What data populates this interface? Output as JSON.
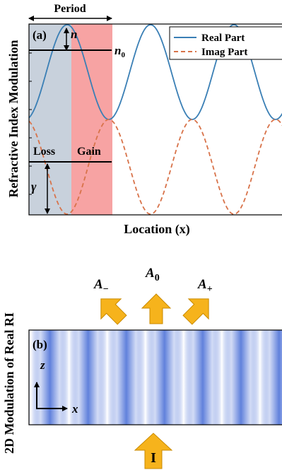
{
  "panel_a": {
    "label": "(a)",
    "period_label": "Period",
    "ylabel": "Refractive Index Modulation",
    "xlabel": "Location (x)",
    "n_label": "n",
    "n0_label": "n",
    "n0_sub": "0",
    "gamma_label": "γ",
    "loss_label": "Loss",
    "gain_label": "Gain",
    "colors": {
      "real": "#3a7fb5",
      "imag": "#d8734a",
      "loss_region": "#c8d1dc",
      "gain_region": "#f7a3a3"
    },
    "chart_data": {
      "type": "line",
      "xlabel": "Location (x)",
      "ylabel": "Refractive Index Modulation",
      "legend_position": "top-right",
      "series": [
        {
          "name": "Real Part",
          "style": "solid",
          "offset": 0.0,
          "mean": 0.5,
          "amplitude": 0.5
        },
        {
          "name": "Imag Part",
          "style": "dashed",
          "offset": 0.5,
          "mean": -0.5,
          "amplitude": 0.5
        }
      ],
      "periods_shown": 3.2
    }
  },
  "panel_b": {
    "label": "(b)",
    "ylabel": "2D Modulation of Real RI",
    "axis_z": "z",
    "axis_x": "x",
    "beam_minus": "A",
    "beam_minus_sub": "−",
    "beam_zero": "A",
    "beam_zero_sub": "0",
    "beam_plus": "A",
    "beam_plus_sub": "+",
    "incident": "I",
    "colors": {
      "arrow": "#f6b31c",
      "arrow_edge": "#c98a00",
      "stripe": "#4f73d8"
    },
    "stripe_count": 7
  }
}
